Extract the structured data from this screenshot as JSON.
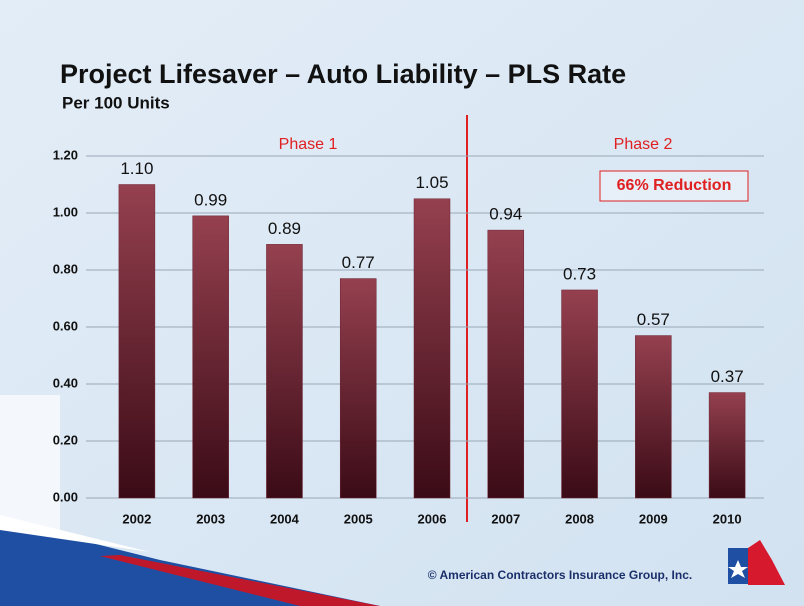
{
  "chart_data": {
    "type": "bar",
    "title": "Project Lifesaver – Auto Liability – PLS Rate",
    "subtitle": "Per 100 Units",
    "categories": [
      "2002",
      "2003",
      "2004",
      "2005",
      "2006",
      "2007",
      "2008",
      "2009",
      "2010"
    ],
    "values": [
      1.1,
      0.99,
      0.89,
      0.77,
      1.05,
      0.94,
      0.73,
      0.57,
      0.37
    ],
    "value_labels": [
      "1.10",
      "0.99",
      "0.89",
      "0.77",
      "1.05",
      "0.94",
      "0.73",
      "0.57",
      "0.37"
    ],
    "color": "#6e2230",
    "ylim": [
      0,
      1.2
    ],
    "yticks": [
      {
        "value": 0,
        "label": "0.00"
      },
      {
        "value": 0.2,
        "label": "0.20"
      },
      {
        "value": 0.4,
        "label": "0.40"
      },
      {
        "value": 0.6,
        "label": "0.60"
      },
      {
        "value": 0.8,
        "label": "0.80"
      },
      {
        "value": 1.0,
        "label": "1.00"
      },
      {
        "value": 1.2,
        "label": "1.20"
      }
    ],
    "grid": true,
    "annotations": [
      "Phase 1",
      "Phase 2",
      "66% Reduction"
    ],
    "footer": "© American Contractors Insurance Group, Inc."
  }
}
